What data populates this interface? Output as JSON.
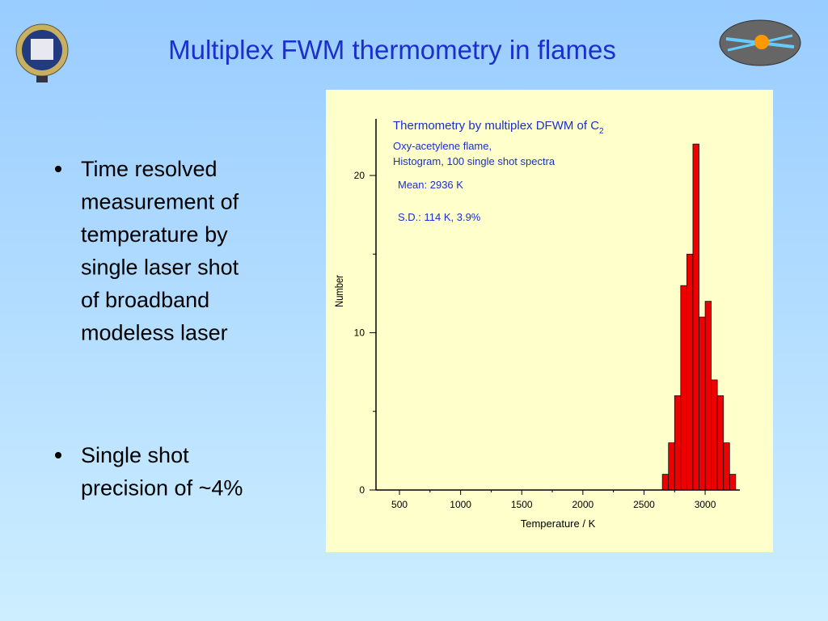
{
  "slide": {
    "title": "Multiplex FWM thermometry in flames",
    "bullets": [
      [
        "Time resolved",
        "measurement of",
        "temperature by",
        "single laser shot",
        "of broadband",
        "modeless laser"
      ],
      [
        "Single shot",
        "precision of ~4%"
      ]
    ]
  },
  "chart_data": {
    "type": "histogram",
    "title": "Thermometry by multiplex DFWM of C",
    "title_subscript": "2",
    "annotations": [
      "Oxy-acetylene flame,",
      "Histogram, 100 single shot spectra",
      "Mean:  2936 K",
      "S.D.:    114 K,  3.9%"
    ],
    "xlabel": "Temperature / K",
    "ylabel": "Number",
    "bins": [
      2650,
      2700,
      2750,
      2800,
      2850,
      2900,
      2950,
      3000,
      3050,
      3100,
      3150,
      3200,
      3250
    ],
    "counts": [
      1,
      3,
      6,
      13,
      15,
      22,
      11,
      12,
      7,
      6,
      3,
      1
    ],
    "color": "#ee0000",
    "xlim": [
      308,
      3284
    ],
    "ylim": [
      0,
      23.6
    ],
    "xticks": [
      500,
      1000,
      1500,
      2000,
      2500,
      3000
    ],
    "xticks_minor": [
      750,
      1250,
      1750,
      2250,
      2750
    ],
    "yticks": [
      0,
      10,
      20
    ],
    "yticks_minor": [
      5,
      15
    ]
  }
}
